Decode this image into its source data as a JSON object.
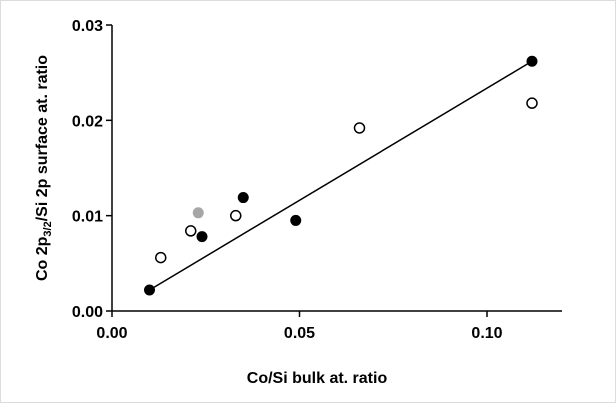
{
  "chart_data": {
    "type": "scatter",
    "xlabel": "Co/Si bulk at. ratio",
    "ylabel": {
      "prefix": "Co 2p",
      "subscript": "3/2",
      "suffix": "/Si 2p surface at. ratio"
    },
    "xlim": [
      0.0,
      0.12
    ],
    "ylim": [
      0.0,
      0.03
    ],
    "x_ticks": [
      "0.00",
      "0.05",
      "0.10"
    ],
    "y_ticks": [
      "0.00",
      "0.01",
      "0.02",
      "0.03"
    ],
    "grid": false,
    "series": [
      {
        "marker": "filled-circle",
        "color": "#000000",
        "points": [
          {
            "x": 0.01,
            "y": 0.0022
          },
          {
            "x": 0.024,
            "y": 0.0078
          },
          {
            "x": 0.035,
            "y": 0.0119
          },
          {
            "x": 0.049,
            "y": 0.0095
          },
          {
            "x": 0.112,
            "y": 0.0262
          }
        ]
      },
      {
        "marker": "open-circle",
        "color": "#000000",
        "points": [
          {
            "x": 0.013,
            "y": 0.0056
          },
          {
            "x": 0.021,
            "y": 0.0084
          },
          {
            "x": 0.033,
            "y": 0.01
          },
          {
            "x": 0.066,
            "y": 0.0192
          },
          {
            "x": 0.112,
            "y": 0.0218
          }
        ]
      },
      {
        "marker": "gray-circle",
        "color": "#a6a6a6",
        "points": [
          {
            "x": 0.023,
            "y": 0.0103
          }
        ]
      }
    ],
    "trendline": {
      "x": [
        0.01,
        0.112
      ],
      "y": [
        0.0022,
        0.0262
      ]
    }
  }
}
